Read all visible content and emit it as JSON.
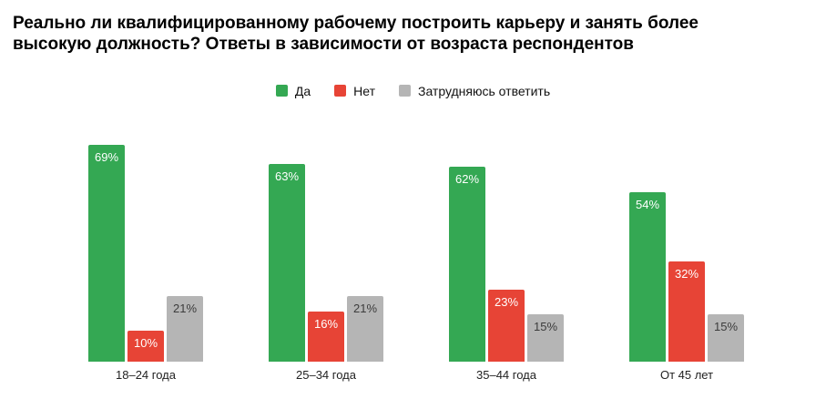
{
  "title": "Реально ли квалифицированному рабочему построить карьеру и занять более высокую должность? Ответы в зависимости от возраста респондентов",
  "chart_data": {
    "type": "bar",
    "title": "Реально ли квалифицированному рабочему построить карьеру и занять более высокую должность? Ответы в зависимости от возраста респондентов",
    "categories": [
      "18–24 года",
      "25–34 года",
      "35–44 года",
      "От 45 лет"
    ],
    "series": [
      {
        "key": "yes",
        "name": "Да",
        "color": "#34a853",
        "label_color": "#ffffff",
        "values": [
          69,
          63,
          62,
          54
        ],
        "labels": [
          "69%",
          "63%",
          "62%",
          "54%"
        ]
      },
      {
        "key": "no",
        "name": "Нет",
        "color": "#e74436",
        "label_color": "#ffffff",
        "values": [
          10,
          16,
          23,
          32
        ],
        "labels": [
          "10%",
          "16%",
          "23%",
          "32%"
        ]
      },
      {
        "key": "undecided",
        "name": "Затрудняюсь ответить",
        "color": "#b5b5b5",
        "label_color": "#3c3c3c",
        "values": [
          21,
          21,
          15,
          15
        ],
        "labels": [
          "21%",
          "21%",
          "15%",
          "15%"
        ]
      }
    ],
    "value_suffix": "%",
    "xlabel": "",
    "ylabel": "",
    "ylim": [
      0,
      100
    ],
    "grid": false,
    "axis_lines": false,
    "legend_position": "top",
    "value_labels_position": "inside-top"
  }
}
